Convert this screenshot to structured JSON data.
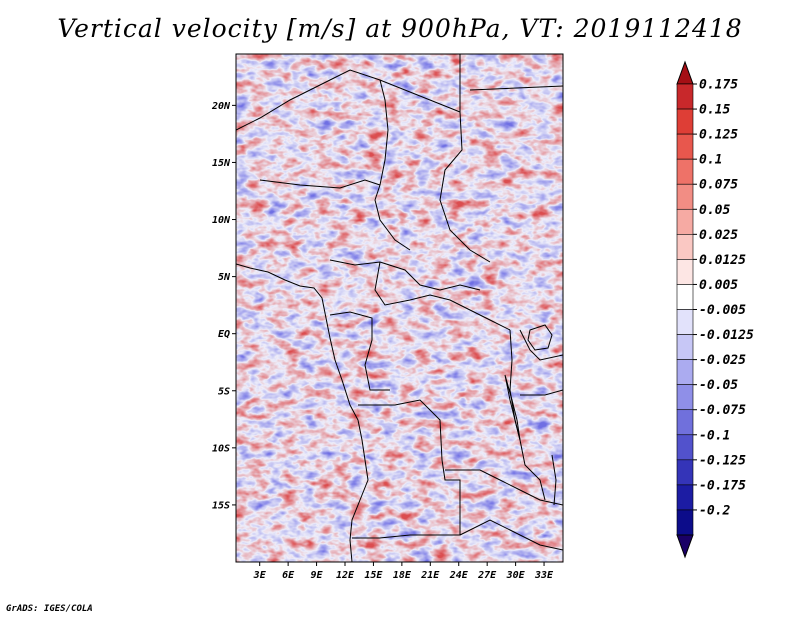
{
  "title": "Vertical velocity [m/s] at 900hPa, VT: 2019112418",
  "footer": "GrADS: IGES/COLA",
  "map": {
    "lat_labels": [
      "20N",
      "15N",
      "10N",
      "5N",
      "EQ",
      "5S",
      "10S",
      "15S"
    ],
    "lon_labels": [
      "3E",
      "6E",
      "9E",
      "12E",
      "15E",
      "18E",
      "21E",
      "24E",
      "27E",
      "30E",
      "33E"
    ],
    "lat_values": [
      20,
      15,
      10,
      5,
      0,
      -5,
      -10,
      -15
    ],
    "lon_values": [
      3,
      6,
      9,
      12,
      15,
      18,
      21,
      24,
      27,
      30,
      33
    ],
    "lat_range": [
      -20,
      24.5
    ],
    "lon_range": [
      0.5,
      35
    ]
  },
  "colorbar": {
    "labels": [
      "0.175",
      "0.15",
      "0.125",
      "0.1",
      "0.075",
      "0.05",
      "0.025",
      "0.0125",
      "0.005",
      "-0.005",
      "-0.0125",
      "-0.025",
      "-0.05",
      "-0.075",
      "-0.1",
      "-0.125",
      "-0.175",
      "-0.2"
    ],
    "colors": [
      "#a50f15",
      "#c8282b",
      "#de3e36",
      "#e8574d",
      "#ee7268",
      "#f28d84",
      "#f6aaa3",
      "#fac8c3",
      "#fde6e4",
      "#ffffff",
      "#e2e2fb",
      "#c7c7f6",
      "#ababf0",
      "#8f8fe8",
      "#7070dc",
      "#5252cc",
      "#3434b8",
      "#1c1ca3",
      "#0c0c8a",
      "#1a0066"
    ]
  }
}
